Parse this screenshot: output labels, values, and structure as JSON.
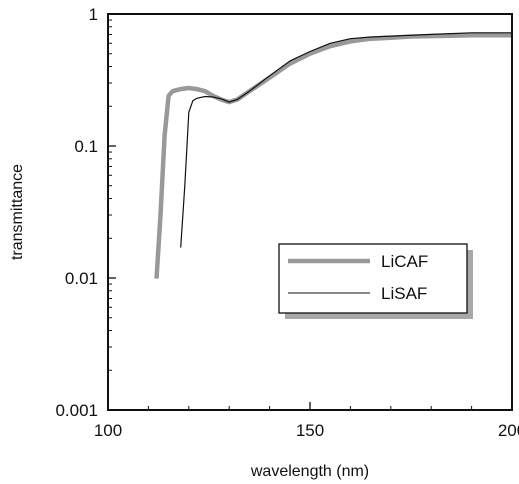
{
  "chart_data": {
    "type": "line",
    "xlabel": "wavelength (nm)",
    "ylabel": "transmittance",
    "xlim": [
      100,
      200
    ],
    "ylim": [
      0.001,
      1
    ],
    "y_scale": "log",
    "x_ticks": [
      100,
      150,
      200
    ],
    "x_tick_labels": [
      "100",
      "150",
      "200"
    ],
    "y_ticks": [
      0.001,
      0.01,
      0.1,
      1
    ],
    "y_tick_labels": [
      "0.001",
      "0.01",
      "0.1",
      "1"
    ],
    "grid": false,
    "legend_position": "lower-right",
    "series": [
      {
        "name": "LiCAF",
        "color": "#999999",
        "style": "thick",
        "x": [
          112,
          113,
          114,
          115,
          116,
          118,
          120,
          122,
          124,
          126,
          128,
          130,
          132,
          135,
          140,
          145,
          150,
          155,
          160,
          165,
          170,
          175,
          180,
          185,
          190,
          195,
          200
        ],
        "y": [
          0.0099,
          0.03,
          0.12,
          0.24,
          0.26,
          0.27,
          0.275,
          0.27,
          0.26,
          0.24,
          0.225,
          0.215,
          0.225,
          0.26,
          0.33,
          0.42,
          0.5,
          0.57,
          0.62,
          0.65,
          0.66,
          0.675,
          0.68,
          0.685,
          0.69,
          0.69,
          0.69
        ]
      },
      {
        "name": "LiSAF",
        "color": "#111111",
        "style": "thin",
        "x": [
          118,
          119,
          120,
          121,
          122,
          124,
          126,
          128,
          130,
          132,
          135,
          140,
          145,
          150,
          155,
          160,
          165,
          170,
          175,
          180,
          185,
          190,
          195,
          200
        ],
        "y": [
          0.017,
          0.05,
          0.18,
          0.22,
          0.23,
          0.237,
          0.235,
          0.228,
          0.215,
          0.225,
          0.26,
          0.34,
          0.44,
          0.52,
          0.6,
          0.65,
          0.67,
          0.68,
          0.69,
          0.7,
          0.71,
          0.72,
          0.72,
          0.72
        ]
      }
    ]
  }
}
